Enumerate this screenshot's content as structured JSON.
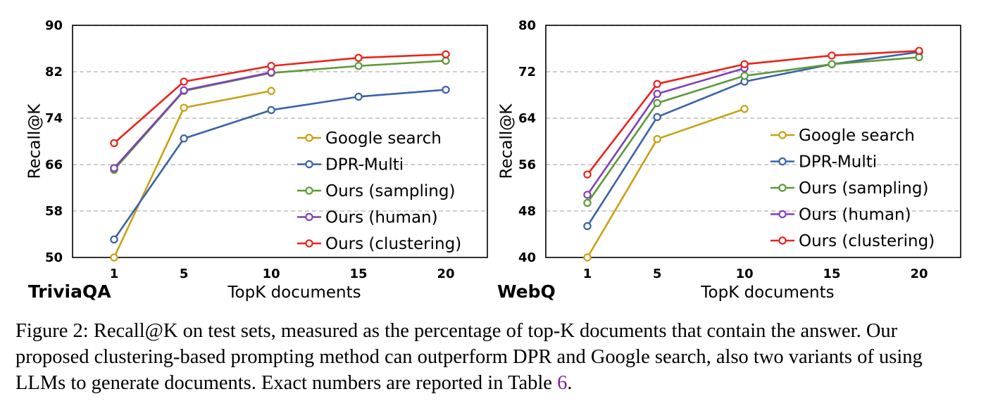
{
  "chart_data": [
    {
      "type": "line",
      "panel_label": "TriviaQA",
      "xlabel": "TopK documents",
      "ylabel": "Recall@K",
      "x": [
        1,
        5,
        10,
        15,
        20
      ],
      "x_ticks": [
        "1",
        "5",
        "10",
        "15",
        "20"
      ],
      "y_ticks": [
        "50",
        "58",
        "66",
        "74",
        "82",
        "90"
      ],
      "ylim": [
        50,
        90
      ],
      "grid": "horizontal dashed",
      "legend_position": "bottom-right",
      "series": [
        {
          "name": "Google search",
          "color": "#c9a013",
          "x": [
            1,
            5,
            10
          ],
          "values": [
            50.0,
            75.8,
            78.7
          ]
        },
        {
          "name": "DPR-Multi",
          "color": "#3a63a7",
          "x": [
            1,
            5,
            10,
            15,
            20
          ],
          "values": [
            53.1,
            70.5,
            75.4,
            77.7,
            78.9
          ]
        },
        {
          "name": "Ours (sampling)",
          "color": "#5b9a38",
          "x": [
            1,
            5,
            10,
            15,
            20
          ],
          "values": [
            65.1,
            78.7,
            81.8,
            83.0,
            83.9
          ]
        },
        {
          "name": "Ours (human)",
          "color": "#8040b8",
          "x": [
            1,
            5,
            10
          ],
          "values": [
            65.4,
            78.8,
            81.9
          ]
        },
        {
          "name": "Ours (clustering)",
          "color": "#e8231c",
          "x": [
            1,
            5,
            10,
            15,
            20
          ],
          "values": [
            69.7,
            80.3,
            83.0,
            84.4,
            85.0
          ]
        }
      ]
    },
    {
      "type": "line",
      "panel_label": "WebQ",
      "xlabel": "TopK documents",
      "ylabel": "Recall@K",
      "x": [
        1,
        5,
        10,
        15,
        20
      ],
      "x_ticks": [
        "1",
        "5",
        "10",
        "15",
        "20"
      ],
      "y_ticks": [
        "40",
        "48",
        "56",
        "64",
        "72",
        "80"
      ],
      "ylim": [
        40,
        80
      ],
      "grid": "horizontal dashed",
      "legend_position": "bottom-right",
      "series": [
        {
          "name": "Google search",
          "color": "#c9a013",
          "x": [
            1,
            5,
            10
          ],
          "values": [
            40.0,
            60.4,
            65.6
          ]
        },
        {
          "name": "DPR-Multi",
          "color": "#3a63a7",
          "x": [
            1,
            5,
            10,
            15,
            20
          ],
          "values": [
            45.4,
            64.2,
            70.3,
            73.3,
            75.4
          ]
        },
        {
          "name": "Ours (sampling)",
          "color": "#5b9a38",
          "x": [
            1,
            5,
            10,
            15,
            20
          ],
          "values": [
            49.4,
            66.6,
            71.3,
            73.3,
            74.5
          ]
        },
        {
          "name": "Ours (human)",
          "color": "#8040b8",
          "x": [
            1,
            5,
            10
          ],
          "values": [
            50.8,
            68.2,
            72.6
          ]
        },
        {
          "name": "Ours (clustering)",
          "color": "#e8231c",
          "x": [
            1,
            5,
            10,
            15,
            20
          ],
          "values": [
            54.3,
            69.9,
            73.3,
            74.8,
            75.6
          ]
        }
      ]
    }
  ],
  "caption": {
    "prefix": "Figure 2: Recall@K on test sets, measured as the percentage of top-K documents that contain the answer. Our proposed clustering-based prompting method can outperform DPR and Google search, also two variants of using LLMs to generate documents. Exact numbers are reported in Table ",
    "table_ref": "6",
    "suffix": "."
  }
}
